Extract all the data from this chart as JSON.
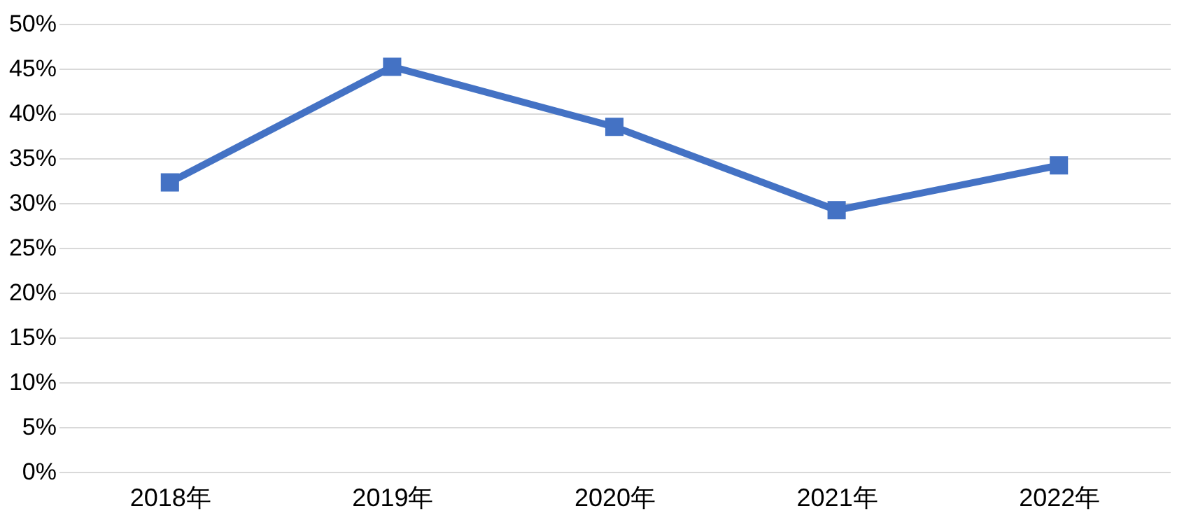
{
  "chart_data": {
    "type": "line",
    "categories": [
      "2018年",
      "2019年",
      "2020年",
      "2021年",
      "2022年"
    ],
    "series": [
      {
        "color": "#4472c4",
        "values": [
          32.3,
          45.2,
          38.5,
          29.2,
          34.2
        ]
      }
    ],
    "ylim": [
      0,
      50
    ],
    "yticks": [
      {
        "value": 0,
        "label": "0%"
      },
      {
        "value": 5,
        "label": "5%"
      },
      {
        "value": 10,
        "label": "10%"
      },
      {
        "value": 15,
        "label": "15%"
      },
      {
        "value": 20,
        "label": "20%"
      },
      {
        "value": 25,
        "label": "25%"
      },
      {
        "value": 30,
        "label": "30%"
      },
      {
        "value": 35,
        "label": "35%"
      },
      {
        "value": 40,
        "label": "40%"
      },
      {
        "value": 45,
        "label": "45%"
      },
      {
        "value": 50,
        "label": "50%"
      }
    ],
    "grid": "y",
    "marker": "square",
    "line_style": "solid"
  }
}
